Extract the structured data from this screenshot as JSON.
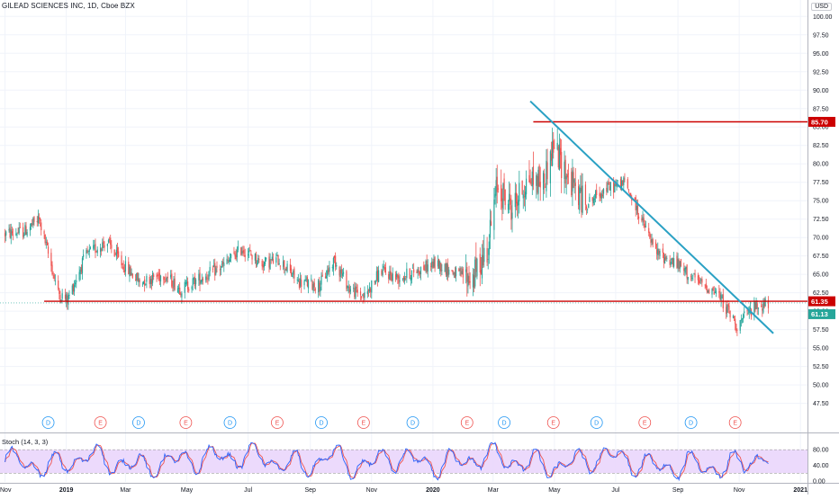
{
  "header": {
    "symbol_title": "GILEAD SCIENCES INC, 1D, Cboe BZX",
    "currency": "USD"
  },
  "price_axis": {
    "ticks": [
      "100.00",
      "97.50",
      "95.00",
      "92.50",
      "90.00",
      "87.50",
      "85.00",
      "82.50",
      "80.00",
      "77.50",
      "75.00",
      "72.50",
      "70.00",
      "67.50",
      "65.00",
      "62.50",
      "60.00",
      "57.50",
      "55.00",
      "52.50",
      "50.00",
      "47.50"
    ],
    "tick_values": [
      100,
      97.5,
      95,
      92.5,
      90,
      87.5,
      85,
      82.5,
      80,
      77.5,
      75,
      72.5,
      70,
      67.5,
      65,
      62.5,
      60,
      57.5,
      55,
      52.5,
      50,
      47.5
    ]
  },
  "time_axis": {
    "labels": [
      "Nov",
      "2019",
      "Mar",
      "May",
      "Jul",
      "Sep",
      "Nov",
      "2020",
      "Mar",
      "May",
      "Jul",
      "Sep",
      "Nov",
      "2021"
    ],
    "bold": [
      "2019",
      "2020",
      "2021"
    ]
  },
  "price_labels": {
    "resistance": "85.70",
    "support": "61.35",
    "last": "61.13"
  },
  "event_markers": [
    "D",
    "E",
    "D",
    "E",
    "D",
    "E",
    "D",
    "E",
    "D",
    "E",
    "D",
    "E",
    "D",
    "E",
    "D",
    "E"
  ],
  "stoch": {
    "label": "Stoch (14, 3, 3)",
    "ticks": [
      "80.00",
      "40.00",
      "0.00"
    ],
    "tick_values": [
      80,
      40,
      0
    ]
  },
  "colors": {
    "up": "#26a69a",
    "down": "#ef5350",
    "resistance": "#cc0000",
    "trendline": "#2aa1c4",
    "last_price": "#26a69a",
    "stoch_k": "#2962ff",
    "stoch_d": "#ef5350",
    "stoch_band": "#e9d3fb",
    "dividend": "#2196f3",
    "earnings": "#ef5350"
  },
  "chart_data": {
    "type": "candlestick",
    "title": "GILEAD SCIENCES INC, 1D, Cboe BZX",
    "y_range": [
      45.5,
      101.5
    ],
    "price_path_keypoints": [
      [
        "2018-11-01",
        70.5
      ],
      [
        "2018-11-20",
        70.8
      ],
      [
        "2018-12-05",
        72.5
      ],
      [
        "2018-12-24",
        62.5
      ],
      [
        "2019-01-02",
        61.5
      ],
      [
        "2019-01-20",
        67.5
      ],
      [
        "2019-02-10",
        69.5
      ],
      [
        "2019-02-25",
        66.5
      ],
      [
        "2019-03-15",
        64.0
      ],
      [
        "2019-04-08",
        65.0
      ],
      [
        "2019-04-25",
        63.0
      ],
      [
        "2019-05-15",
        64.5
      ],
      [
        "2019-06-05",
        66.0
      ],
      [
        "2019-06-25",
        68.5
      ],
      [
        "2019-07-15",
        66.5
      ],
      [
        "2019-08-01",
        67.0
      ],
      [
        "2019-08-20",
        64.0
      ],
      [
        "2019-09-10",
        63.5
      ],
      [
        "2019-09-25",
        67.0
      ],
      [
        "2019-10-10",
        63.0
      ],
      [
        "2019-10-25",
        62.0
      ],
      [
        "2019-11-10",
        65.5
      ],
      [
        "2019-11-28",
        64.5
      ],
      [
        "2019-12-15",
        65.5
      ],
      [
        "2020-01-05",
        66.5
      ],
      [
        "2020-01-25",
        65.0
      ],
      [
        "2020-02-10",
        64.5
      ],
      [
        "2020-02-25",
        69.0
      ],
      [
        "2020-03-05",
        77.0
      ],
      [
        "2020-03-20",
        74.0
      ],
      [
        "2020-04-05",
        78.0
      ],
      [
        "2020-04-20",
        77.5
      ],
      [
        "2020-04-30",
        82.5
      ],
      [
        "2020-05-15",
        78.0
      ],
      [
        "2020-06-01",
        74.5
      ],
      [
        "2020-06-20",
        76.5
      ],
      [
        "2020-07-10",
        77.5
      ],
      [
        "2020-07-25",
        73.0
      ],
      [
        "2020-08-10",
        68.0
      ],
      [
        "2020-08-30",
        66.5
      ],
      [
        "2020-09-20",
        64.0
      ],
      [
        "2020-10-10",
        62.5
      ],
      [
        "2020-10-30",
        58.0
      ],
      [
        "2020-11-15",
        60.5
      ],
      [
        "2020-11-30",
        61.1
      ]
    ],
    "horizontal_lines": [
      {
        "value": 85.7,
        "from": "2020-04-10"
      },
      {
        "value": 61.35,
        "from": "2018-12-10"
      }
    ],
    "trendline": {
      "from": [
        "2020-04-07",
        88.5
      ],
      "to": [
        "2020-12-05",
        57.0
      ]
    },
    "last_price": 61.13,
    "dividend_dates": [
      "2018-12-14",
      "2019-03-14",
      "2019-06-13",
      "2019-09-12",
      "2019-12-12",
      "2020-03-12",
      "2020-06-12",
      "2020-09-14"
    ],
    "earnings_dates": [
      "2019-02-04",
      "2019-04-30",
      "2019-07-30",
      "2019-10-24",
      "2020-02-04",
      "2020-04-30",
      "2020-07-30",
      "2020-10-28"
    ],
    "stoch_k_keypoints": [
      [
        "2018-11-01",
        55
      ],
      [
        "2018-12-20",
        15
      ],
      [
        "2019-01-20",
        85
      ],
      [
        "2019-03-10",
        20
      ],
      [
        "2019-05-01",
        60
      ],
      [
        "2019-07-01",
        85
      ],
      [
        "2019-08-25",
        15
      ],
      [
        "2019-09-20",
        85
      ],
      [
        "2019-10-20",
        15
      ],
      [
        "2019-11-20",
        75
      ],
      [
        "2020-01-05",
        30
      ],
      [
        "2020-02-25",
        80
      ],
      [
        "2020-04-01",
        40
      ],
      [
        "2020-05-10",
        25
      ],
      [
        "2020-06-20",
        85
      ],
      [
        "2020-08-15",
        10
      ],
      [
        "2020-09-10",
        30
      ],
      [
        "2020-10-20",
        12
      ],
      [
        "2020-11-20",
        80
      ],
      [
        "2020-11-30",
        60
      ]
    ]
  }
}
